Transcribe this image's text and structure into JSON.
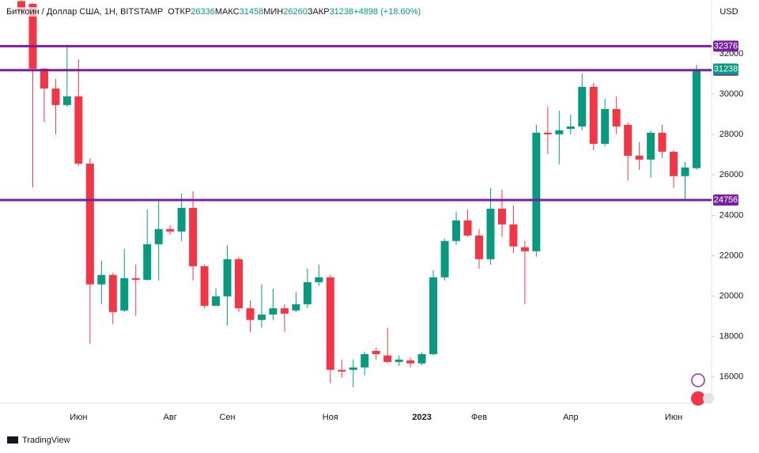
{
  "chart_data": {
    "type": "candlestick",
    "title": "Биткоин / Доллар США, 1Н, BITSTAMP",
    "ohlc_labels": [
      "ОТКР",
      "МАКС",
      "МИН",
      "ЗАКР"
    ],
    "change_label": "+4898 (+18.60%)",
    "currency": "USD",
    "watermark": "TradingView",
    "categories": [
      null,
      null,
      null,
      null,
      null,
      "Июн",
      null,
      null,
      null,
      null,
      null,
      null,
      null,
      "Авг",
      null,
      null,
      null,
      null,
      "Сен",
      null,
      null,
      null,
      null,
      null,
      null,
      null,
      null,
      "Ноя",
      null,
      null,
      null,
      null,
      null,
      null,
      null,
      "2023",
      null,
      null,
      null,
      null,
      "Фев",
      null,
      null,
      null,
      null,
      null,
      null,
      null,
      "Апр",
      null,
      null,
      null,
      null,
      null,
      null,
      null,
      null,
      "Июн",
      null,
      null
    ],
    "open": [
      34600,
      34470,
      31260,
      30280,
      29460,
      29890,
      26560,
      20580,
      21050,
      19290,
      20890,
      20810,
      22570,
      23320,
      23200,
      24370,
      21480,
      19520,
      19990,
      21830,
      19400,
      18820,
      19090,
      19400,
      19290,
      19600,
      20690,
      20930,
      16350,
      16350,
      16470,
      17290,
      17060,
      16740,
      16820,
      16670,
      17130,
      20930,
      22730,
      23750,
      23000,
      21830,
      24330,
      23550,
      22420,
      22220,
      28090,
      28010,
      28280,
      28400,
      30360,
      27540,
      29260,
      28480,
      26950,
      26760,
      28090,
      27150,
      25940,
      26336
    ],
    "high": [
      34660,
      34500,
      31300,
      30750,
      32310,
      31730,
      26840,
      21750,
      21160,
      22340,
      21560,
      24290,
      24690,
      23510,
      25080,
      25190,
      21560,
      20380,
      22530,
      21950,
      19790,
      20580,
      20380,
      19600,
      20190,
      21360,
      21560,
      21050,
      16860,
      16860,
      17250,
      17450,
      18430,
      17060,
      16980,
      17210,
      21280,
      22850,
      24180,
      24290,
      23320,
      25350,
      25270,
      24490,
      22730,
      28480,
      29380,
      29180,
      28990,
      31020,
      30550,
      29770,
      29890,
      28600,
      27620,
      28210,
      28480,
      27230,
      26640,
      31458
    ],
    "low": [
      33900,
      25390,
      28600,
      28010,
      29380,
      26450,
      17640,
      19600,
      18620,
      19210,
      19010,
      20770,
      20770,
      23040,
      22730,
      20770,
      19400,
      19600,
      18540,
      19210,
      18230,
      18430,
      18820,
      18230,
      19210,
      19400,
      20500,
      15690,
      15960,
      15490,
      16080,
      16860,
      16670,
      16550,
      16470,
      16590,
      17060,
      20770,
      22530,
      22930,
      21360,
      21560,
      22930,
      22140,
      19600,
      21950,
      27030,
      26520,
      28010,
      28210,
      27230,
      27420,
      28010,
      25740,
      26250,
      25860,
      26840,
      25350,
      24800,
      26260
    ],
    "close": [
      34050,
      31260,
      30280,
      29460,
      29890,
      26560,
      20580,
      21050,
      19210,
      20890,
      20810,
      22570,
      23320,
      23200,
      24370,
      21480,
      19520,
      19990,
      21830,
      19400,
      18820,
      19090,
      19400,
      19130,
      19600,
      20690,
      20930,
      16350,
      16270,
      16470,
      17130,
      17130,
      16740,
      16860,
      16670,
      17130,
      20930,
      22730,
      23750,
      23000,
      21830,
      24330,
      23550,
      22460,
      22220,
      28090,
      28010,
      28210,
      28400,
      30360,
      27540,
      29260,
      28400,
      26950,
      26760,
      28090,
      27150,
      25940,
      26370,
      31238
    ],
    "up_color": "#089981",
    "down_color": "#f23645",
    "ylim": [
      14700,
      34660
    ],
    "yticks": [
      16000,
      18000,
      20000,
      22000,
      24000,
      26000,
      28000,
      30000,
      32000
    ],
    "hlines": [
      32376,
      31187,
      24756
    ],
    "hline_color": "#7b1fa2"
  }
}
